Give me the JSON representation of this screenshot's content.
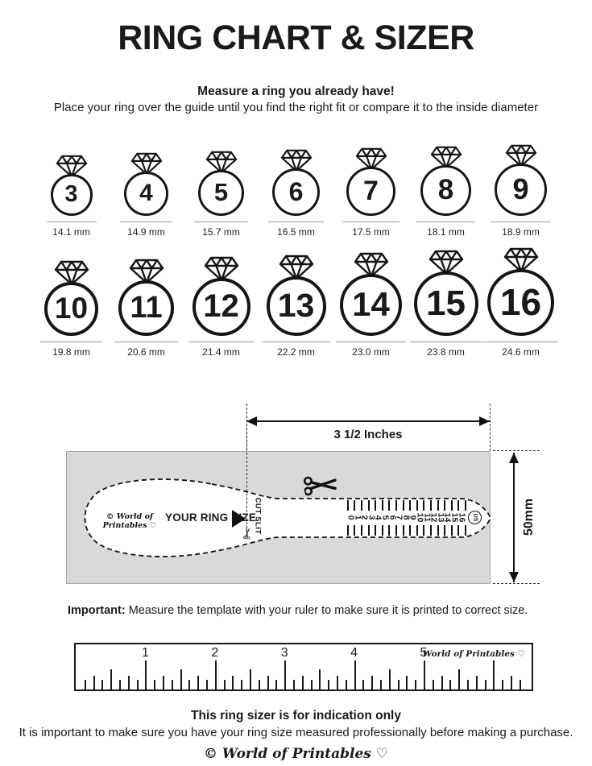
{
  "colors": {
    "ink": "#1a1a1a",
    "panel_gray": "#d9d9d9",
    "underline_gray": "#999999"
  },
  "header": {
    "title": "RING CHART & SIZER",
    "tagline_bold": "Measure a ring you already have!",
    "tagline": "Place your ring over the guide until you find the right fit or compare it to the inside diameter"
  },
  "ring_chart": {
    "rows": [
      {
        "items": [
          {
            "size": "3",
            "mm": "14.1 mm",
            "d": 52
          },
          {
            "size": "4",
            "mm": "14.9 mm",
            "d": 55
          },
          {
            "size": "5",
            "mm": "15.7 mm",
            "d": 57
          },
          {
            "size": "6",
            "mm": "16.5 mm",
            "d": 59
          },
          {
            "size": "7",
            "mm": "17.5 mm",
            "d": 61
          },
          {
            "size": "8",
            "mm": "18.1 mm",
            "d": 63
          },
          {
            "size": "9",
            "mm": "18.9 mm",
            "d": 65
          }
        ]
      },
      {
        "items": [
          {
            "size": "10",
            "mm": "19.8 mm",
            "d": 67
          },
          {
            "size": "11",
            "mm": "20.6 mm",
            "d": 69
          },
          {
            "size": "12",
            "mm": "21.4 mm",
            "d": 72
          },
          {
            "size": "13",
            "mm": "22.2 mm",
            "d": 74
          },
          {
            "size": "14",
            "mm": "23.0 mm",
            "d": 77
          },
          {
            "size": "15",
            "mm": "23.8 mm",
            "d": 80
          },
          {
            "size": "16",
            "mm": "24.6 mm",
            "d": 83
          }
        ]
      }
    ]
  },
  "sizer": {
    "width_label": "3 1/2 Inches",
    "height_label": "50mm",
    "brand": "© World of Printables ♡",
    "size_label": "YOUR RING SIZE",
    "cut_label": "CUT SLIT",
    "scale": [
      "0",
      "1",
      "2",
      "3",
      "4",
      "5",
      "6",
      "7",
      "8",
      "9",
      "10",
      "11",
      "12",
      "13",
      "14",
      "15",
      "16"
    ],
    "scale_unit": "US"
  },
  "important": {
    "label": "Important:",
    "text": "Measure the template with your ruler to make sure it is printed to correct size."
  },
  "ruler": {
    "numbers": [
      "1",
      "2",
      "3",
      "4",
      "5"
    ],
    "brand": "World of Printables ♡"
  },
  "footer": {
    "bold": "This ring sizer is for indication only",
    "text": "It is important to make sure you have your ring size measured professionally before making a purchase.",
    "brand": "© World of Printables ♡"
  }
}
